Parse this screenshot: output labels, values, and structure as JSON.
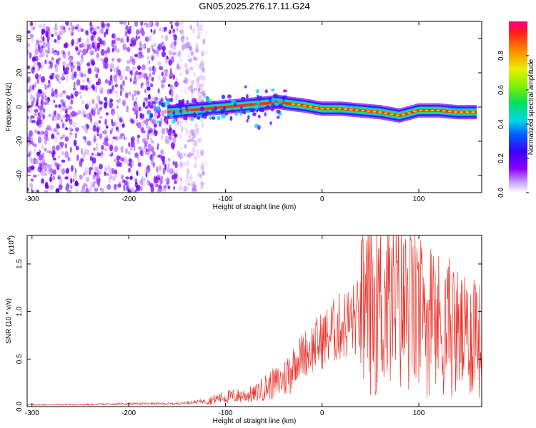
{
  "title": "GN05.2025.276.17.11.G24",
  "chart_data": [
    {
      "type": "heatmap",
      "name": "spectrogram",
      "xlabel": "Height of straight line (km)",
      "ylabel": "Frequency (Hz)",
      "xlim": [
        -305,
        165
      ],
      "ylim": [
        -50,
        50
      ],
      "xticks": [
        -300,
        -200,
        -100,
        0,
        100
      ],
      "yticks": [
        -40,
        -20,
        0,
        20,
        40
      ],
      "ridge": {
        "x": [
          -160,
          -140,
          -120,
          -100,
          -80,
          -60,
          -45,
          -35,
          -20,
          0,
          20,
          40,
          60,
          80,
          100,
          120,
          140,
          160
        ],
        "y": [
          -3,
          -2,
          -1,
          0,
          1,
          2,
          3,
          2,
          1,
          -1,
          -1,
          -2,
          -3,
          -5,
          -2,
          -2,
          -3,
          -3
        ]
      },
      "scattered_region_x": [
        -305,
        -130
      ],
      "colorbar": {
        "label": "Normalized spectral amplitude",
        "ticks": [
          "0.0",
          "0.2",
          "0.4",
          "0.6",
          "0.8"
        ],
        "range": [
          0,
          1
        ]
      }
    },
    {
      "type": "line",
      "name": "snr",
      "xlabel": "Height of straight line (km)",
      "ylabel": "SNR (10 * v/v)",
      "y_multiplier": "(x10",
      "y_multiplier_exp": "4",
      "xlim": [
        -305,
        165
      ],
      "ylim": [
        0,
        1.8
      ],
      "xticks": [
        -300,
        -200,
        -100,
        0,
        100
      ],
      "yticks": [
        "0.0",
        "0.5",
        "1.0",
        "1.5"
      ],
      "series": [
        {
          "name": "SNR",
          "color": "#e8332a",
          "x": [
            -305,
            -250,
            -200,
            -150,
            -120,
            -100,
            -70,
            -60,
            -40,
            -30,
            -20,
            0,
            20,
            40,
            50,
            70,
            90,
            110,
            130,
            150,
            160,
            165
          ],
          "y": [
            0.02,
            0.02,
            0.03,
            0.03,
            0.06,
            0.1,
            0.13,
            0.2,
            0.28,
            0.45,
            0.55,
            0.7,
            0.85,
            0.95,
            1.05,
            1.1,
            1.0,
            0.9,
            0.85,
            0.7,
            0.9,
            0.55
          ]
        }
      ]
    }
  ]
}
